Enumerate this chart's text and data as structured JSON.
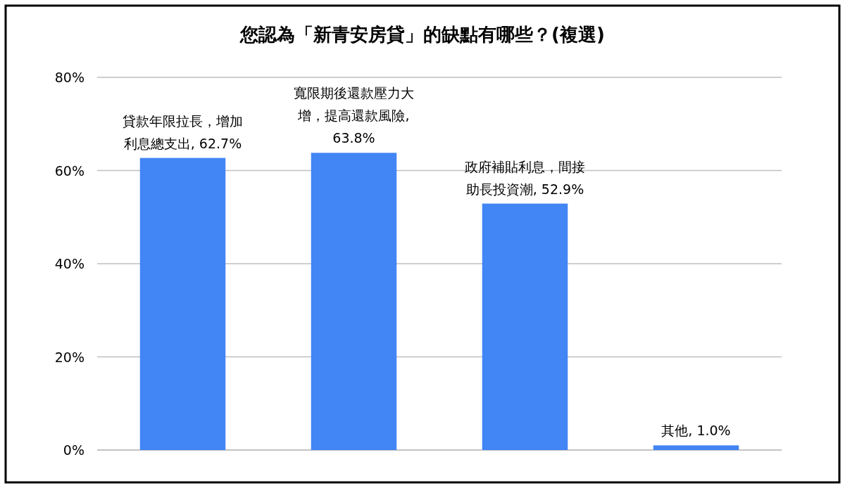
{
  "chart_data": {
    "type": "bar",
    "title": "您認為「新青安房貸」的缺點有哪些？(複選)",
    "categories": [
      null,
      null,
      null,
      null
    ],
    "values": [
      62.7,
      63.8,
      52.9,
      1.0
    ],
    "value_labels": [
      "貸款年限拉長，增加利息總支出, 62.7%",
      "寬限期後還款壓力大增，提高還款風險, 63.8%",
      "政府補貼利息，間接助長投資潮, 52.9%",
      "其他, 1.0%"
    ],
    "color": "#4285f4",
    "ylim": [
      0,
      80
    ],
    "yticks": [
      {
        "value": 0,
        "label": "0%"
      },
      {
        "value": 20,
        "label": "20%"
      },
      {
        "value": 40,
        "label": "40%"
      },
      {
        "value": 60,
        "label": "60%"
      },
      {
        "value": 80,
        "label": "80%"
      }
    ],
    "grid": "y"
  }
}
